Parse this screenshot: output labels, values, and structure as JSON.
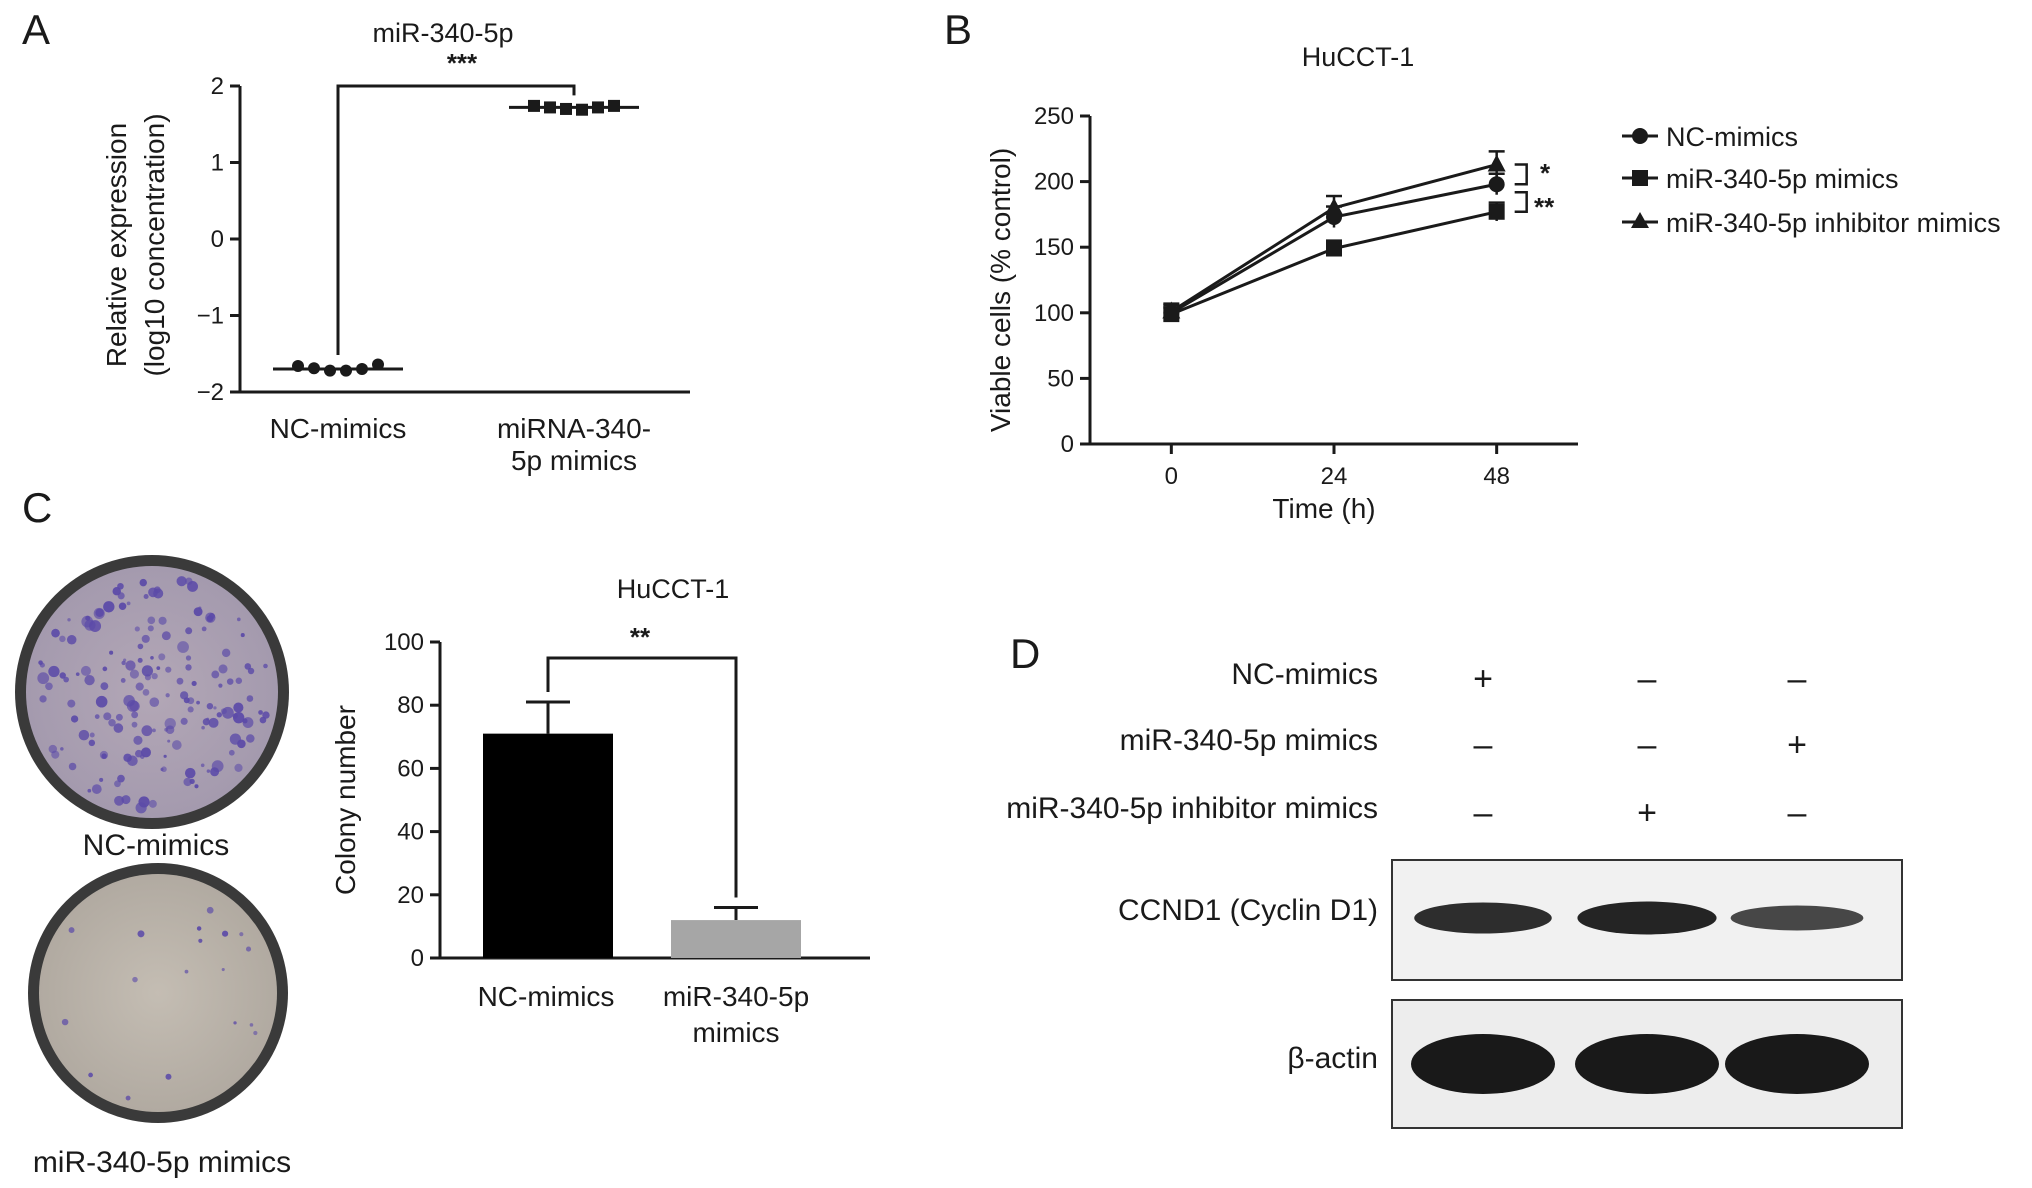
{
  "chart_data": [
    {
      "panel": "A",
      "type": "scatter",
      "title": "miR-340-5p",
      "ylabel": "Relative expression\n(log10 concentration)",
      "ylabel_lines": [
        "Relative expression",
        "(log10 concentration)"
      ],
      "ylim": [
        -2,
        2
      ],
      "yticks": [
        2,
        1,
        0,
        -1,
        -2
      ],
      "ytick_labels": [
        "2",
        "1",
        "0",
        "−1",
        "−2"
      ],
      "categories": [
        "NC-mimics",
        "miRNA-340-5p mimics"
      ],
      "category_label_lines": [
        [
          "NC-mimics"
        ],
        [
          "miRNA-340-",
          "5p mimics"
        ]
      ],
      "series": [
        {
          "category": "NC-mimics",
          "marker": "circle",
          "mean": -1.7,
          "values": [
            -1.66,
            -1.69,
            -1.72,
            -1.72,
            -1.7,
            -1.64
          ]
        },
        {
          "category": "miRNA-340-5p mimics",
          "marker": "square",
          "mean": 1.72,
          "values": [
            1.74,
            1.72,
            1.7,
            1.69,
            1.72,
            1.74
          ]
        }
      ],
      "significance": "***"
    },
    {
      "panel": "B",
      "type": "line",
      "title": "HuCCT-1",
      "xlabel": "Time (h)",
      "ylabel": "Viable cells (% control)",
      "x": [
        0,
        24,
        48
      ],
      "xlim": [
        -12,
        60
      ],
      "ylim": [
        0,
        250
      ],
      "yticks": [
        0,
        50,
        100,
        150,
        200,
        250
      ],
      "series": [
        {
          "name": "NC-mimics",
          "marker": "circle",
          "values": [
            100,
            173,
            198
          ],
          "errors": [
            6,
            8,
            8
          ]
        },
        {
          "name": "miR-340-5p mimics",
          "marker": "square",
          "values": [
            99,
            149,
            177
          ],
          "errors": [
            5,
            6,
            7
          ]
        },
        {
          "name": "miR-340-5p inhibitor mimics",
          "marker": "triangle",
          "values": [
            101,
            180,
            213
          ],
          "errors": [
            6,
            9,
            10
          ]
        }
      ],
      "legend_position": "right",
      "significance": [
        "*",
        "**"
      ]
    },
    {
      "panel": "C",
      "type": "bar",
      "title": "HuCCT-1",
      "ylabel": "Colony number",
      "ylim": [
        0,
        100
      ],
      "yticks": [
        0,
        20,
        40,
        60,
        80,
        100
      ],
      "categories": [
        "NC-mimics",
        "miR-340-5p mimics"
      ],
      "category_label_lines": [
        [
          "NC-mimics"
        ],
        [
          "miR-340-5p",
          "mimics"
        ]
      ],
      "values": [
        71,
        12
      ],
      "errors": [
        10,
        4
      ],
      "colors": [
        "#000000",
        "#a6a6a6"
      ],
      "significance": "**"
    }
  ],
  "panels": {
    "a_letter": "A",
    "b_letter": "B",
    "c_letter": "C",
    "d_letter": "D"
  },
  "panel_c_images": {
    "top_dish_label": "NC-mimics",
    "bottom_dish_label": "miR-340-5p mimics",
    "stain_color": "#5b4aa8",
    "dish_background": "#b9b3ab",
    "dish_rim": "#2b2b2b"
  },
  "western_blot": {
    "rows": [
      {
        "label": "NC-mimics",
        "signs": [
          "+",
          "–",
          "–"
        ]
      },
      {
        "label": "miR-340-5p mimics",
        "signs": [
          "–",
          "–",
          "+"
        ]
      },
      {
        "label": "miR-340-5p inhibitor mimics",
        "signs": [
          "–",
          "+",
          "–"
        ]
      }
    ],
    "blots": [
      {
        "label": "CCND1 (Cyclin D1)",
        "band_intensity": [
          0.85,
          0.95,
          0.55
        ]
      },
      {
        "label": "β-actin",
        "band_intensity": [
          1,
          1,
          1
        ]
      }
    ]
  }
}
